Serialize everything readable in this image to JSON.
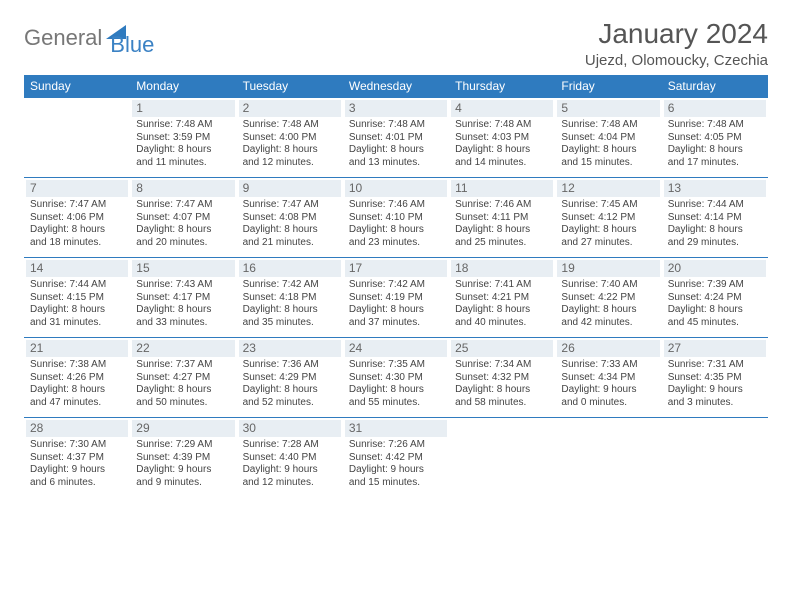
{
  "brand": {
    "part1": "General",
    "part2": "Blue"
  },
  "title": "January 2024",
  "location": "Ujezd, Olomoucky, Czechia",
  "colors": {
    "header_bg": "#2f7bbf",
    "header_text": "#ffffff",
    "daynum_bg": "#e8eef3",
    "border": "#2f7bbf",
    "brand_gray": "#777777",
    "brand_blue": "#3b82c4"
  },
  "weekdays": [
    "Sunday",
    "Monday",
    "Tuesday",
    "Wednesday",
    "Thursday",
    "Friday",
    "Saturday"
  ],
  "weeks": [
    [
      null,
      {
        "n": "1",
        "sr": "Sunrise: 7:48 AM",
        "ss": "Sunset: 3:59 PM",
        "d1": "Daylight: 8 hours",
        "d2": "and 11 minutes."
      },
      {
        "n": "2",
        "sr": "Sunrise: 7:48 AM",
        "ss": "Sunset: 4:00 PM",
        "d1": "Daylight: 8 hours",
        "d2": "and 12 minutes."
      },
      {
        "n": "3",
        "sr": "Sunrise: 7:48 AM",
        "ss": "Sunset: 4:01 PM",
        "d1": "Daylight: 8 hours",
        "d2": "and 13 minutes."
      },
      {
        "n": "4",
        "sr": "Sunrise: 7:48 AM",
        "ss": "Sunset: 4:03 PM",
        "d1": "Daylight: 8 hours",
        "d2": "and 14 minutes."
      },
      {
        "n": "5",
        "sr": "Sunrise: 7:48 AM",
        "ss": "Sunset: 4:04 PM",
        "d1": "Daylight: 8 hours",
        "d2": "and 15 minutes."
      },
      {
        "n": "6",
        "sr": "Sunrise: 7:48 AM",
        "ss": "Sunset: 4:05 PM",
        "d1": "Daylight: 8 hours",
        "d2": "and 17 minutes."
      }
    ],
    [
      {
        "n": "7",
        "sr": "Sunrise: 7:47 AM",
        "ss": "Sunset: 4:06 PM",
        "d1": "Daylight: 8 hours",
        "d2": "and 18 minutes."
      },
      {
        "n": "8",
        "sr": "Sunrise: 7:47 AM",
        "ss": "Sunset: 4:07 PM",
        "d1": "Daylight: 8 hours",
        "d2": "and 20 minutes."
      },
      {
        "n": "9",
        "sr": "Sunrise: 7:47 AM",
        "ss": "Sunset: 4:08 PM",
        "d1": "Daylight: 8 hours",
        "d2": "and 21 minutes."
      },
      {
        "n": "10",
        "sr": "Sunrise: 7:46 AM",
        "ss": "Sunset: 4:10 PM",
        "d1": "Daylight: 8 hours",
        "d2": "and 23 minutes."
      },
      {
        "n": "11",
        "sr": "Sunrise: 7:46 AM",
        "ss": "Sunset: 4:11 PM",
        "d1": "Daylight: 8 hours",
        "d2": "and 25 minutes."
      },
      {
        "n": "12",
        "sr": "Sunrise: 7:45 AM",
        "ss": "Sunset: 4:12 PM",
        "d1": "Daylight: 8 hours",
        "d2": "and 27 minutes."
      },
      {
        "n": "13",
        "sr": "Sunrise: 7:44 AM",
        "ss": "Sunset: 4:14 PM",
        "d1": "Daylight: 8 hours",
        "d2": "and 29 minutes."
      }
    ],
    [
      {
        "n": "14",
        "sr": "Sunrise: 7:44 AM",
        "ss": "Sunset: 4:15 PM",
        "d1": "Daylight: 8 hours",
        "d2": "and 31 minutes."
      },
      {
        "n": "15",
        "sr": "Sunrise: 7:43 AM",
        "ss": "Sunset: 4:17 PM",
        "d1": "Daylight: 8 hours",
        "d2": "and 33 minutes."
      },
      {
        "n": "16",
        "sr": "Sunrise: 7:42 AM",
        "ss": "Sunset: 4:18 PM",
        "d1": "Daylight: 8 hours",
        "d2": "and 35 minutes."
      },
      {
        "n": "17",
        "sr": "Sunrise: 7:42 AM",
        "ss": "Sunset: 4:19 PM",
        "d1": "Daylight: 8 hours",
        "d2": "and 37 minutes."
      },
      {
        "n": "18",
        "sr": "Sunrise: 7:41 AM",
        "ss": "Sunset: 4:21 PM",
        "d1": "Daylight: 8 hours",
        "d2": "and 40 minutes."
      },
      {
        "n": "19",
        "sr": "Sunrise: 7:40 AM",
        "ss": "Sunset: 4:22 PM",
        "d1": "Daylight: 8 hours",
        "d2": "and 42 minutes."
      },
      {
        "n": "20",
        "sr": "Sunrise: 7:39 AM",
        "ss": "Sunset: 4:24 PM",
        "d1": "Daylight: 8 hours",
        "d2": "and 45 minutes."
      }
    ],
    [
      {
        "n": "21",
        "sr": "Sunrise: 7:38 AM",
        "ss": "Sunset: 4:26 PM",
        "d1": "Daylight: 8 hours",
        "d2": "and 47 minutes."
      },
      {
        "n": "22",
        "sr": "Sunrise: 7:37 AM",
        "ss": "Sunset: 4:27 PM",
        "d1": "Daylight: 8 hours",
        "d2": "and 50 minutes."
      },
      {
        "n": "23",
        "sr": "Sunrise: 7:36 AM",
        "ss": "Sunset: 4:29 PM",
        "d1": "Daylight: 8 hours",
        "d2": "and 52 minutes."
      },
      {
        "n": "24",
        "sr": "Sunrise: 7:35 AM",
        "ss": "Sunset: 4:30 PM",
        "d1": "Daylight: 8 hours",
        "d2": "and 55 minutes."
      },
      {
        "n": "25",
        "sr": "Sunrise: 7:34 AM",
        "ss": "Sunset: 4:32 PM",
        "d1": "Daylight: 8 hours",
        "d2": "and 58 minutes."
      },
      {
        "n": "26",
        "sr": "Sunrise: 7:33 AM",
        "ss": "Sunset: 4:34 PM",
        "d1": "Daylight: 9 hours",
        "d2": "and 0 minutes."
      },
      {
        "n": "27",
        "sr": "Sunrise: 7:31 AM",
        "ss": "Sunset: 4:35 PM",
        "d1": "Daylight: 9 hours",
        "d2": "and 3 minutes."
      }
    ],
    [
      {
        "n": "28",
        "sr": "Sunrise: 7:30 AM",
        "ss": "Sunset: 4:37 PM",
        "d1": "Daylight: 9 hours",
        "d2": "and 6 minutes."
      },
      {
        "n": "29",
        "sr": "Sunrise: 7:29 AM",
        "ss": "Sunset: 4:39 PM",
        "d1": "Daylight: 9 hours",
        "d2": "and 9 minutes."
      },
      {
        "n": "30",
        "sr": "Sunrise: 7:28 AM",
        "ss": "Sunset: 4:40 PM",
        "d1": "Daylight: 9 hours",
        "d2": "and 12 minutes."
      },
      {
        "n": "31",
        "sr": "Sunrise: 7:26 AM",
        "ss": "Sunset: 4:42 PM",
        "d1": "Daylight: 9 hours",
        "d2": "and 15 minutes."
      },
      null,
      null,
      null
    ]
  ]
}
